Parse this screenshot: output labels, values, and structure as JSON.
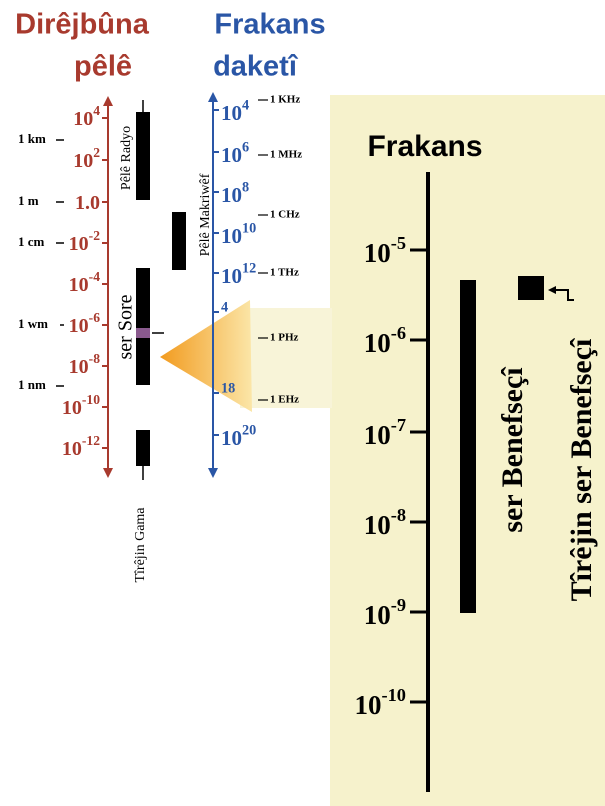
{
  "left_axis": {
    "title": [
      "Dirêjbûna",
      "pêlê"
    ],
    "ticks": [
      {
        "base": "10",
        "exp": "4"
      },
      {
        "base": "10",
        "exp": "2"
      },
      {
        "base": "1.0"
      },
      {
        "base": "10",
        "exp": "-2"
      },
      {
        "base": "10",
        "exp": "-4"
      },
      {
        "base": "10",
        "exp": "-6"
      },
      {
        "base": "10",
        "exp": "-8"
      },
      {
        "base": "10",
        "exp": "-10"
      },
      {
        "base": "10",
        "exp": "-12"
      }
    ],
    "annotations": [
      "1 km",
      "1 m",
      "1 cm",
      "1 wm",
      "1 nm"
    ]
  },
  "right_axis": {
    "title": [
      "Frakans",
      "daketî"
    ],
    "ticks": [
      {
        "base": "10",
        "exp": "4"
      },
      {
        "base": "10",
        "exp": "6"
      },
      {
        "base": "10",
        "exp": "8"
      },
      {
        "base": "10",
        "exp": "10"
      },
      {
        "base": "10",
        "exp": "12"
      },
      {
        "exp": "4"
      },
      {
        "exp": "18"
      },
      {
        "base": "10",
        "exp": "20"
      }
    ],
    "annotations": [
      "1 KHz",
      "1 MHz",
      "1 CHz",
      "1 THz",
      "1 PHz",
      "1 EHz"
    ]
  },
  "bands": [
    "Pêlê Radyo",
    "Pêlê Makriwêf",
    "ser Sore",
    "Tîrêjin Gama"
  ],
  "panel": {
    "title": "Frakans",
    "ticks": [
      {
        "base": "10",
        "exp": "-5"
      },
      {
        "base": "10",
        "exp": "-6"
      },
      {
        "base": "10",
        "exp": "-7"
      },
      {
        "base": "10",
        "exp": "-8"
      },
      {
        "base": "10",
        "exp": "-9"
      },
      {
        "base": "10",
        "exp": "-10"
      }
    ],
    "labels": [
      "ser Benefseçî",
      "Tîrêjin ser Benefseçî"
    ]
  }
}
